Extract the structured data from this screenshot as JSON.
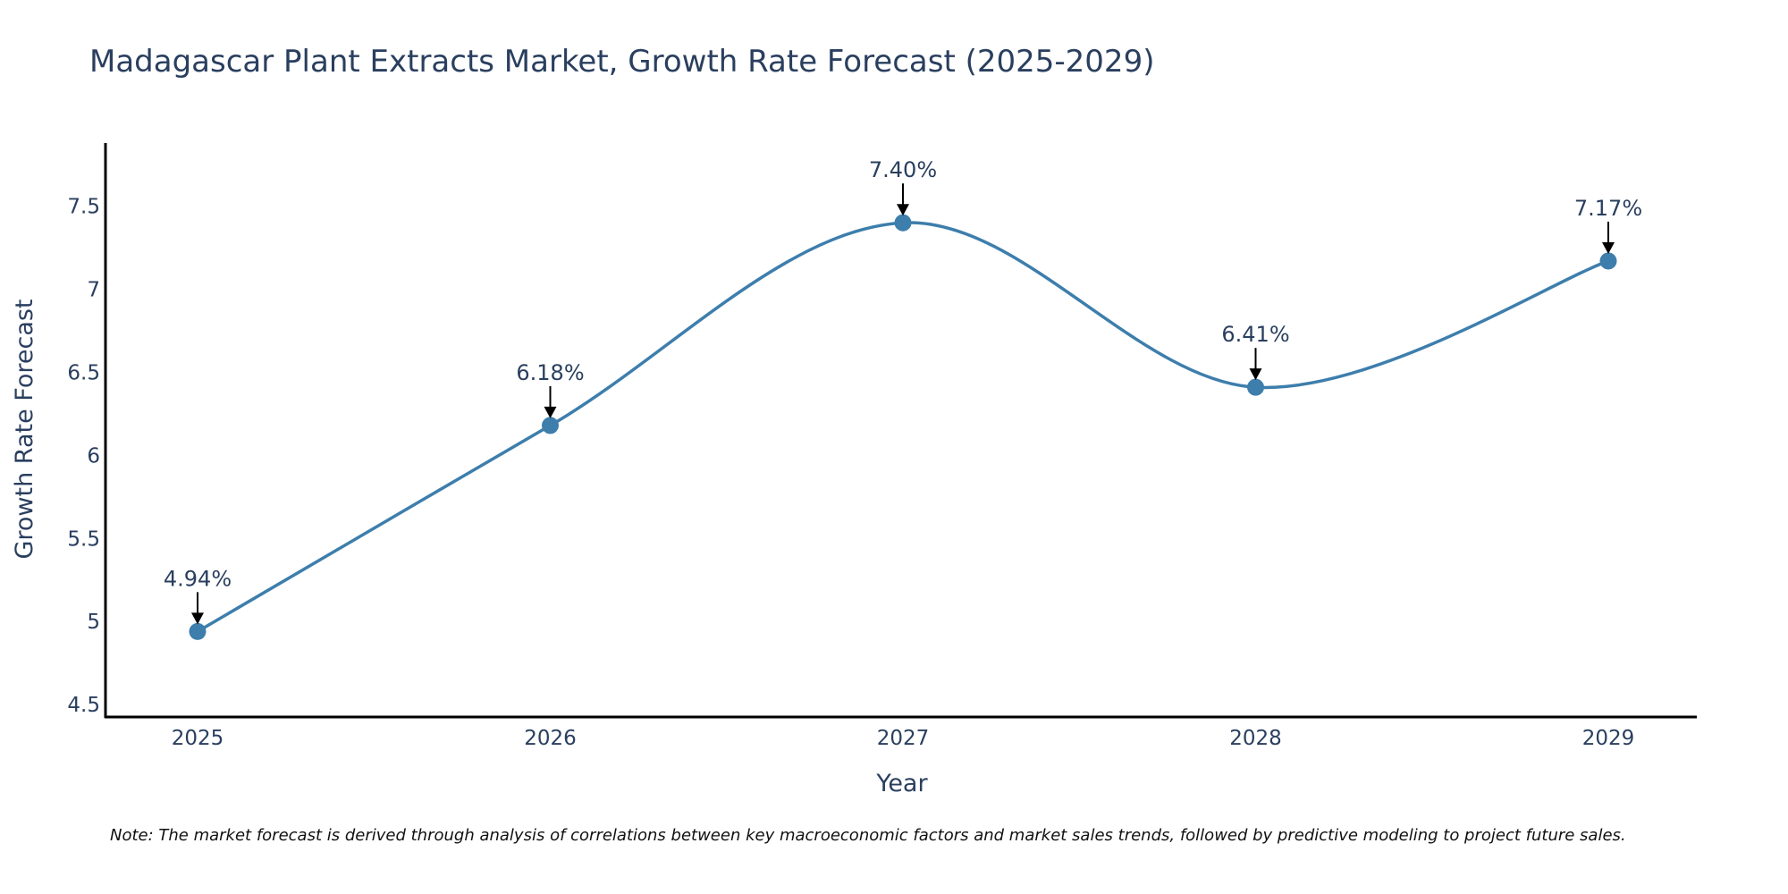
{
  "chart_data": {
    "type": "line",
    "title": "Madagascar Plant Extracts Market, Growth Rate Forecast (2025-2029)",
    "xlabel": "Year",
    "ylabel": "Growth Rate Forecast",
    "x": [
      "2025",
      "2026",
      "2027",
      "2028",
      "2029"
    ],
    "series": [
      {
        "name": "Growth Rate Forecast",
        "values": [
          4.94,
          6.18,
          7.4,
          6.41,
          7.17
        ],
        "labels": [
          "4.94%",
          "6.18%",
          "7.40%",
          "6.41%",
          "7.17%"
        ]
      }
    ],
    "ylim": [
      4.42,
      7.88
    ],
    "yticks": [
      4.5,
      5,
      5.5,
      6,
      6.5,
      7,
      7.5
    ],
    "ytick_labels": [
      "4.5",
      "5",
      "5.5",
      "6",
      "6.5",
      "7",
      "7.5"
    ],
    "grid": false,
    "line_color": "#3d7eac",
    "axis_color": "#000000",
    "note": "Note: The market forecast is derived through analysis of correlations between key macroeconomic factors and market sales trends, followed by predictive modeling to project future sales."
  }
}
